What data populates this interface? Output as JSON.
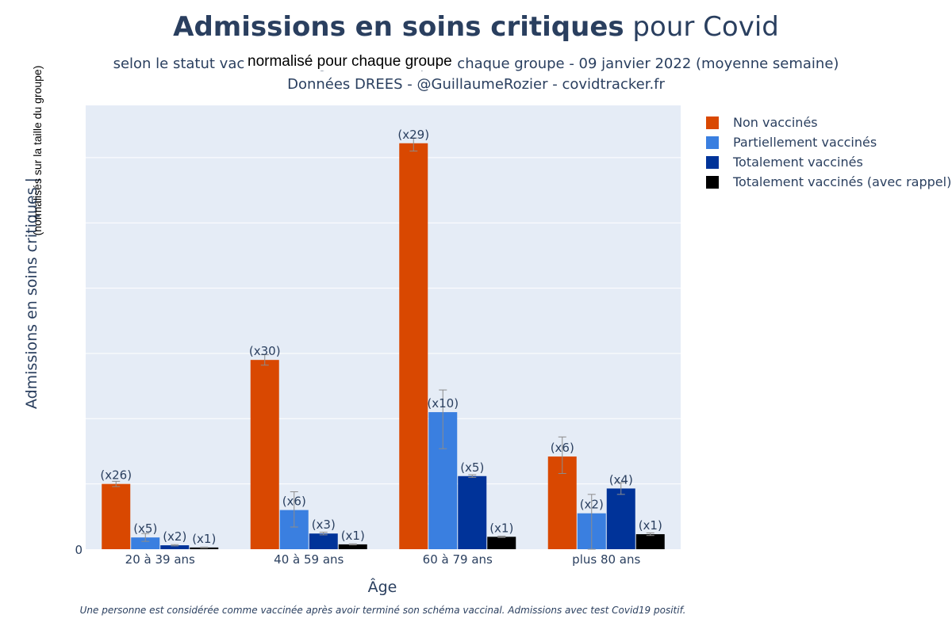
{
  "header": {
    "title_bold": "Admissions en soins critiques",
    "title_rest": " pour Covid",
    "subtitle_line1": "selon le statut vaccinal et l'âge, normalisé pour chaque groupe - 09 janvier 2022 (moyenne semaine)",
    "subtitle_line2": "Données DREES - @GuillaumeRozier - covidtracker.fr",
    "overlay_note": "normalisé pour chaque groupe"
  },
  "footnote": "Une personne est considérée comme vaccinée après avoir terminé son schéma vaccinal. Admissions avec test Covid19 positif.",
  "colors": {
    "plot_bg": "#e5ecf6",
    "grid": "#ffffff",
    "error_bar": "#8c8c8c",
    "text": "#2a3f5f"
  },
  "chart_data": {
    "type": "bar",
    "title": "Admissions en soins critiques pour Covid",
    "xlabel": "Âge",
    "ylabel": "Admissions en soins critiques |",
    "ylabel_extra": "(normalisés sur la taille du groupe)",
    "ylim": [
      0,
      34
    ],
    "y_tick_values": [
      0,
      5,
      10,
      15,
      20,
      25,
      30
    ],
    "y_tick_labels": [
      "0"
    ],
    "grid": true,
    "legend_position": "top-right",
    "categories": [
      "20 à 39 ans",
      "40 à 59 ans",
      "60 à 79 ans",
      "plus 80 ans"
    ],
    "series": [
      {
        "name": "Non vaccinés",
        "color": "#d94801",
        "values": [
          5.0,
          14.5,
          31.1,
          7.1
        ],
        "error_low": [
          4.8,
          14.1,
          30.5,
          5.8
        ],
        "error_high": [
          5.2,
          14.9,
          31.5,
          8.6
        ],
        "labels": [
          "(x26)",
          "(x30)",
          "(x29)",
          "(x6)"
        ]
      },
      {
        "name": "Partiellement vaccinés",
        "color": "#3a7fe0",
        "values": [
          0.9,
          3.0,
          10.5,
          2.75
        ],
        "error_low": [
          0.6,
          1.7,
          7.7,
          0.0
        ],
        "error_high": [
          1.2,
          4.4,
          12.2,
          4.2
        ],
        "labels": [
          "(x5)",
          "(x6)",
          "(x10)",
          "(x2)"
        ]
      },
      {
        "name": "Totalement vaccinés",
        "color": "#003399",
        "values": [
          0.3,
          1.2,
          5.6,
          4.65
        ],
        "error_low": [
          0.25,
          1.1,
          5.5,
          4.2
        ],
        "error_high": [
          0.35,
          1.3,
          5.7,
          5.1
        ],
        "labels": [
          "(x2)",
          "(x3)",
          "(x5)",
          "(x4)"
        ]
      },
      {
        "name": "Totalement vaccinés (avec rappel)",
        "color": "#000000",
        "values": [
          0.13,
          0.37,
          0.95,
          1.15
        ],
        "error_low": [
          0.1,
          0.33,
          0.9,
          1.05
        ],
        "error_high": [
          0.16,
          0.41,
          1.0,
          1.25
        ],
        "labels": [
          "(x1)",
          "(x1)",
          "(x1)",
          "(x1)"
        ]
      }
    ]
  }
}
